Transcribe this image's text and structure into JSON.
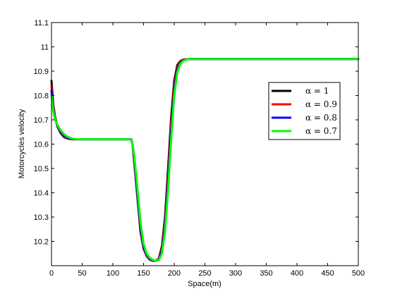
{
  "chart_data": {
    "type": "line",
    "title": "",
    "xlabel": "Space(m)",
    "ylabel": "Motorcycles velocity",
    "xlim": [
      0,
      500
    ],
    "ylim": [
      10.1,
      11.1
    ],
    "x_ticks": [
      0,
      50,
      100,
      150,
      200,
      250,
      300,
      350,
      400,
      450,
      500
    ],
    "y_ticks": [
      10.2,
      10.3,
      10.4,
      10.5,
      10.6,
      10.7,
      10.8,
      10.9,
      11,
      11.1
    ],
    "x_tick_labels": [
      "0",
      "50",
      "100",
      "150",
      "200",
      "250",
      "300",
      "350",
      "400",
      "450",
      "500"
    ],
    "y_tick_labels": [
      "10.2",
      "10.3",
      "10.4",
      "10.5",
      "10.6",
      "10.7",
      "10.8",
      "10.9",
      "11",
      "11.1"
    ],
    "grid": false,
    "legend_position": "right",
    "series": [
      {
        "name": "α = 1",
        "color": "#000000",
        "x": [
          0,
          3,
          6,
          10,
          15,
          20,
          25,
          30,
          35,
          40,
          50,
          60,
          80,
          100,
          120,
          130,
          132,
          135,
          140,
          145,
          150,
          155,
          160,
          165,
          170,
          175,
          180,
          185,
          190,
          195,
          200,
          205,
          210,
          215,
          220,
          225,
          230,
          250,
          300,
          400,
          500
        ],
        "values": [
          10.86,
          10.76,
          10.71,
          10.67,
          10.645,
          10.63,
          10.624,
          10.621,
          10.62,
          10.62,
          10.62,
          10.62,
          10.62,
          10.62,
          10.62,
          10.62,
          10.6,
          10.52,
          10.38,
          10.24,
          10.17,
          10.14,
          10.125,
          10.12,
          10.12,
          10.13,
          10.18,
          10.3,
          10.5,
          10.71,
          10.86,
          10.925,
          10.942,
          10.948,
          10.949,
          10.95,
          10.95,
          10.95,
          10.95,
          10.95,
          10.95
        ]
      },
      {
        "name": "α = 0.9",
        "color": "#ff0000",
        "x": [
          0,
          3,
          6,
          10,
          15,
          20,
          25,
          30,
          35,
          40,
          50,
          60,
          80,
          100,
          120,
          130,
          132,
          135,
          140,
          145,
          150,
          155,
          160,
          165,
          170,
          175,
          180,
          185,
          190,
          195,
          200,
          205,
          210,
          215,
          220,
          225,
          230,
          250,
          300,
          400,
          500
        ],
        "values": [
          10.84,
          10.75,
          10.705,
          10.672,
          10.648,
          10.633,
          10.626,
          10.622,
          10.62,
          10.62,
          10.62,
          10.62,
          10.62,
          10.62,
          10.62,
          10.62,
          10.6,
          10.53,
          10.39,
          10.25,
          10.175,
          10.142,
          10.127,
          10.121,
          10.12,
          10.128,
          10.17,
          10.28,
          10.47,
          10.68,
          10.84,
          10.915,
          10.94,
          10.947,
          10.949,
          10.95,
          10.95,
          10.95,
          10.95,
          10.95,
          10.95
        ]
      },
      {
        "name": "α = 0.8",
        "color": "#0000ff",
        "x": [
          0,
          3,
          6,
          10,
          15,
          20,
          25,
          30,
          35,
          40,
          50,
          60,
          80,
          100,
          120,
          130,
          132,
          135,
          140,
          145,
          150,
          155,
          160,
          165,
          170,
          175,
          180,
          185,
          190,
          195,
          200,
          205,
          210,
          215,
          220,
          225,
          230,
          250,
          300,
          400,
          500
        ],
        "values": [
          10.82,
          10.74,
          10.7,
          10.675,
          10.652,
          10.637,
          10.628,
          10.623,
          10.621,
          10.62,
          10.62,
          10.62,
          10.62,
          10.62,
          10.62,
          10.62,
          10.6,
          10.54,
          10.4,
          10.26,
          10.18,
          10.145,
          10.13,
          10.122,
          10.12,
          10.125,
          10.16,
          10.26,
          10.44,
          10.65,
          10.82,
          10.905,
          10.935,
          10.945,
          10.948,
          10.95,
          10.95,
          10.95,
          10.95,
          10.95,
          10.95
        ]
      },
      {
        "name": "α = 0.7",
        "color": "#00ff00",
        "x": [
          0,
          3,
          6,
          10,
          15,
          20,
          25,
          30,
          35,
          40,
          50,
          60,
          80,
          100,
          120,
          130,
          132,
          135,
          140,
          145,
          150,
          155,
          160,
          165,
          170,
          175,
          180,
          185,
          190,
          195,
          200,
          205,
          210,
          215,
          220,
          225,
          230,
          250,
          300,
          400,
          500
        ],
        "values": [
          10.8,
          10.735,
          10.7,
          10.678,
          10.657,
          10.642,
          10.632,
          10.626,
          10.622,
          10.621,
          10.62,
          10.62,
          10.62,
          10.62,
          10.62,
          10.62,
          10.6,
          10.55,
          10.42,
          10.28,
          10.19,
          10.15,
          10.133,
          10.124,
          10.12,
          10.123,
          10.15,
          10.24,
          10.41,
          10.62,
          10.8,
          10.895,
          10.93,
          10.943,
          10.948,
          10.95,
          10.95,
          10.95,
          10.95,
          10.95,
          10.95
        ]
      }
    ]
  }
}
